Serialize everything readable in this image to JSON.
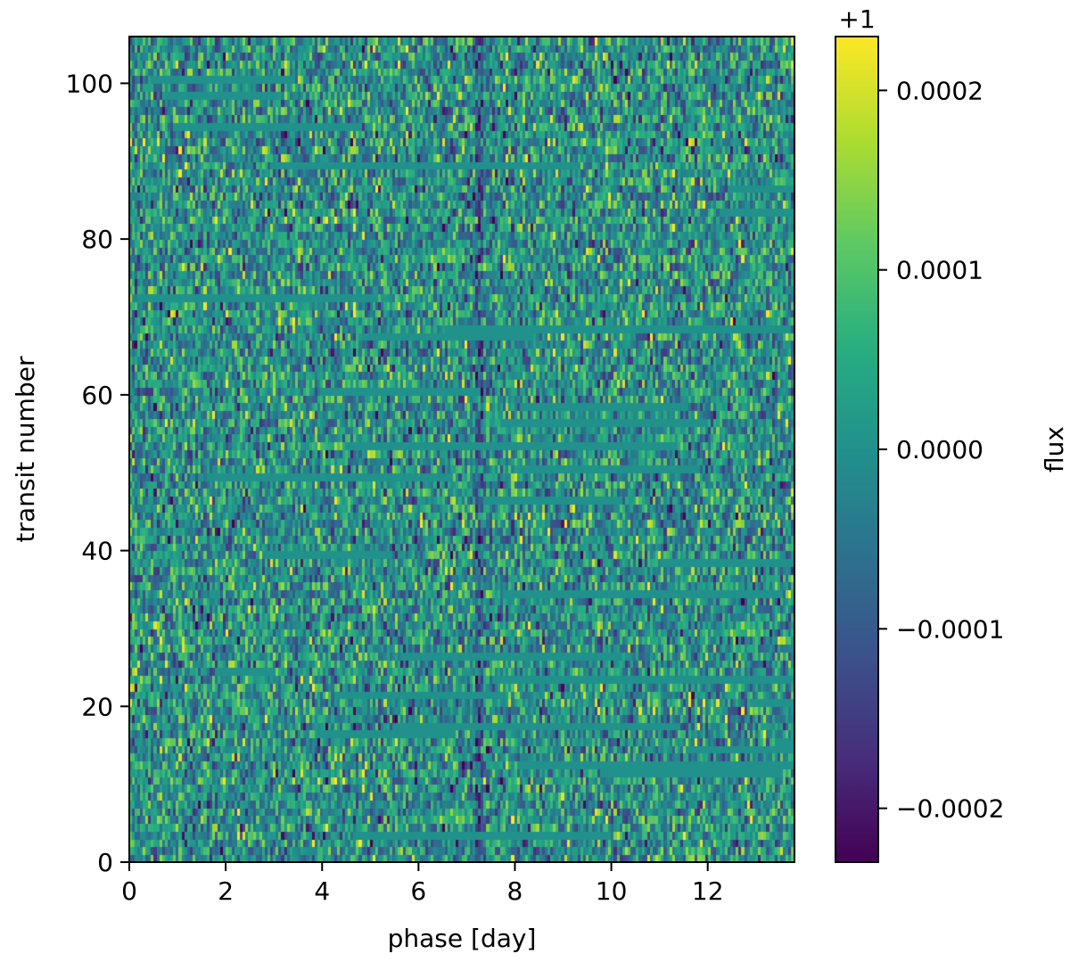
{
  "chart_data": {
    "type": "heatmap",
    "title": "",
    "xlabel": "phase [day]",
    "ylabel": "transit number",
    "xlim": [
      0,
      13.8
    ],
    "ylim": [
      0,
      106
    ],
    "x_ticks": [
      0,
      2,
      4,
      6,
      8,
      10,
      12
    ],
    "x_tick_labels": [
      "0",
      "2",
      "4",
      "6",
      "8",
      "10",
      "12"
    ],
    "y_ticks": [
      0,
      20,
      40,
      60,
      80,
      100
    ],
    "y_tick_labels": [
      "0",
      "20",
      "40",
      "60",
      "80",
      "100"
    ],
    "rows": 106,
    "columns": 240,
    "grid": false,
    "colormap": "viridis",
    "colormap_stops": [
      "#440154",
      "#472d7b",
      "#3b528b",
      "#2c728e",
      "#21918c",
      "#28ae80",
      "#5ec962",
      "#addc30",
      "#fde725"
    ],
    "fill_value": 0.0,
    "dip_phase": 7.25,
    "colorbar": {
      "label": "flux",
      "offset_label": "+1",
      "range": [
        -0.00023,
        0.00023
      ],
      "ticks": [
        -0.0002,
        -0.0001,
        0.0,
        0.0001,
        0.0002
      ],
      "tick_labels": [
        "−0.0002",
        "−0.0001",
        "0.0000",
        "0.0001",
        "0.0002"
      ]
    }
  }
}
